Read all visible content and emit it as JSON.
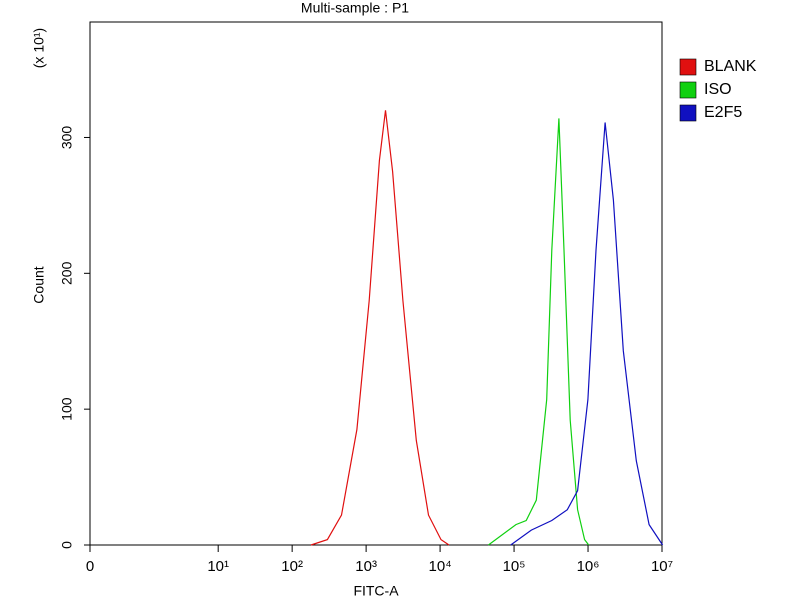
{
  "chart_data": {
    "type": "line",
    "title": "Multi-sample : P1",
    "x_label": "FITC-A",
    "y_label": "Count",
    "y_multiplier": "(x 10¹)",
    "xscale": "biexponential",
    "xlim": [
      0,
      10000000
    ],
    "xticks": [
      0,
      {
        "value": 10,
        "label": "10¹"
      },
      {
        "value": 100,
        "label": "10²"
      },
      {
        "value": 1000,
        "label": "10³"
      },
      {
        "value": 10000,
        "label": "10⁴"
      },
      {
        "value": 100000,
        "label": "10⁵"
      },
      {
        "value": 1000000,
        "label": "10⁶"
      },
      {
        "value": 10000000,
        "label": "10⁷"
      }
    ],
    "ylim": [
      0,
      385
    ],
    "yticks": [
      0,
      100,
      200,
      300
    ],
    "legend": "right",
    "series": [
      {
        "name": "BLANK",
        "color": "#e01010",
        "x": [
          180,
          300,
          465,
          750,
          1100,
          1510,
          1830,
          2280,
          3140,
          4770,
          6980,
          10300,
          13200
        ],
        "values": [
          0,
          4,
          22,
          85,
          180,
          283,
          320,
          275,
          180,
          77,
          22,
          4,
          0
        ]
      },
      {
        "name": "ISO",
        "color": "#10d010",
        "x": [
          45000,
          106000,
          146000,
          200000,
          276000,
          324000,
          404000,
          474000,
          574000,
          722000,
          900000,
          1020000
        ],
        "values": [
          0,
          15,
          18,
          33,
          107,
          217,
          314,
          217,
          92,
          26,
          4,
          0
        ]
      },
      {
        "name": "E2F5",
        "color": "#1010c0",
        "x": [
          90000,
          171000,
          324000,
          525000,
          722000,
          997000,
          1280000,
          1700000,
          2200000,
          3000000,
          4500000,
          6700000,
          10200000
        ],
        "values": [
          0,
          11,
          18,
          26,
          40,
          107,
          217,
          311,
          254,
          143,
          62,
          15,
          0
        ]
      }
    ]
  }
}
